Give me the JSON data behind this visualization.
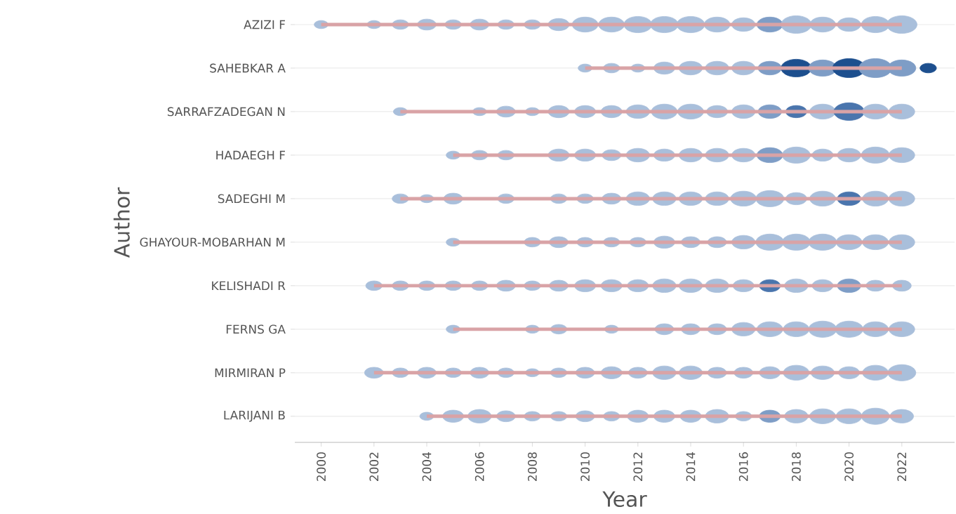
{
  "chart_data": {
    "type": "bubble",
    "orientation": "horizontal",
    "xlabel": "Year",
    "ylabel": "Author",
    "grid": "y",
    "xlim": [
      1999,
      2024
    ],
    "xticks": [
      2000,
      2002,
      2004,
      2006,
      2008,
      2010,
      2012,
      2014,
      2016,
      2018,
      2020,
      2022
    ],
    "categories": [
      "AZIZI F",
      "SAHEBKAR A",
      "SARRAFZADEGAN N",
      "HADAEGH F",
      "SADEGHI M",
      "GHAYOUR-MOBARHAN M",
      "KELISHADI R",
      "FERNS GA",
      "MIRMIRAN P",
      "LARIJANI B"
    ],
    "series": [
      {
        "type": "bar",
        "color": "#d9a3a6",
        "base": [
          2000,
          2010,
          2003,
          2005,
          2003,
          2005,
          2002,
          2005,
          2002,
          2004
        ],
        "values": [
          22,
          12,
          19,
          17,
          19,
          17,
          20,
          17,
          20,
          18
        ]
      },
      {
        "values": [
          2000,
          null,
          null,
          null,
          null,
          null,
          null,
          null,
          null,
          null
        ],
        "sizes": [
          0.18,
          null,
          null,
          null,
          null,
          null,
          null,
          null,
          null,
          null
        ],
        "colors": [
          "#a9bfdb",
          null,
          null,
          null,
          null,
          null,
          null,
          null,
          null,
          null
        ]
      },
      {
        "values": [
          2002,
          null,
          null,
          null,
          null,
          null,
          2002,
          null,
          2002,
          null
        ],
        "sizes": [
          0.18,
          null,
          null,
          null,
          null,
          null,
          0.25,
          null,
          0.33,
          null
        ],
        "colors": [
          "#a9bfdb",
          null,
          null,
          null,
          null,
          null,
          "#a9bfdb",
          null,
          "#a9bfdb",
          null
        ]
      },
      {
        "values": [
          2003,
          null,
          2003,
          null,
          2003,
          null,
          2003,
          null,
          2003,
          null
        ],
        "sizes": [
          0.25,
          null,
          0.18,
          null,
          0.25,
          null,
          0.25,
          null,
          0.25,
          null
        ],
        "colors": [
          "#a9bfdb",
          null,
          "#a9bfdb",
          null,
          "#a9bfdb",
          null,
          "#a9bfdb",
          null,
          "#a9bfdb",
          null
        ]
      },
      {
        "values": [
          2004,
          null,
          null,
          null,
          2004,
          null,
          2004,
          null,
          2004,
          2004
        ],
        "sizes": [
          0.33,
          null,
          null,
          null,
          0.18,
          null,
          0.25,
          null,
          0.33,
          0.18
        ],
        "colors": [
          "#a9bfdb",
          null,
          null,
          null,
          "#a9bfdb",
          null,
          "#a9bfdb",
          null,
          "#a9bfdb",
          "#a9bfdb"
        ]
      },
      {
        "values": [
          2005,
          null,
          null,
          2005,
          2005,
          2005,
          2005,
          2005,
          2005,
          2005
        ],
        "sizes": [
          0.25,
          null,
          null,
          0.18,
          0.33,
          0.18,
          0.25,
          0.18,
          0.25,
          0.41
        ],
        "colors": [
          "#a9bfdb",
          null,
          null,
          "#a9bfdb",
          "#a9bfdb",
          "#a9bfdb",
          "#a9bfdb",
          "#a9bfdb",
          "#a9bfdb",
          "#a9bfdb"
        ]
      },
      {
        "values": [
          2006,
          null,
          2006,
          2006,
          null,
          null,
          2006,
          null,
          2006,
          2006
        ],
        "sizes": [
          0.33,
          null,
          0.18,
          0.25,
          null,
          null,
          0.25,
          null,
          0.33,
          0.51
        ],
        "colors": [
          "#a9bfdb",
          null,
          "#a9bfdb",
          "#a9bfdb",
          null,
          null,
          "#a9bfdb",
          null,
          "#a9bfdb",
          "#a9bfdb"
        ]
      },
      {
        "values": [
          2007,
          null,
          2007,
          2007,
          2007,
          null,
          2007,
          null,
          2007,
          2007
        ],
        "sizes": [
          0.25,
          null,
          0.33,
          0.25,
          0.25,
          null,
          0.33,
          null,
          0.25,
          0.33
        ],
        "colors": [
          "#a9bfdb",
          null,
          "#a9bfdb",
          "#a9bfdb",
          "#a9bfdb",
          null,
          "#a9bfdb",
          null,
          "#a9bfdb",
          "#a9bfdb"
        ]
      },
      {
        "values": [
          2008,
          null,
          2008,
          null,
          null,
          2008,
          2008,
          2008,
          2008,
          2008
        ],
        "sizes": [
          0.25,
          null,
          0.18,
          null,
          null,
          0.25,
          0.25,
          0.18,
          0.18,
          0.25
        ],
        "colors": [
          "#a9bfdb",
          null,
          "#a9bfdb",
          null,
          null,
          "#a9bfdb",
          "#a9bfdb",
          "#a9bfdb",
          "#a9bfdb",
          "#a9bfdb"
        ]
      },
      {
        "values": [
          2009,
          null,
          2009,
          2009,
          2009,
          2009,
          2009,
          2009,
          2009,
          2009
        ],
        "sizes": [
          0.41,
          null,
          0.41,
          0.41,
          0.25,
          0.33,
          0.33,
          0.25,
          0.25,
          0.25
        ],
        "colors": [
          "#a9bfdb",
          null,
          "#a9bfdb",
          "#a9bfdb",
          "#a9bfdb",
          "#a9bfdb",
          "#a9bfdb",
          "#a9bfdb",
          "#a9bfdb",
          "#a9bfdb"
        ]
      },
      {
        "values": [
          2010,
          2010,
          2010,
          2010,
          2010,
          2010,
          2010,
          null,
          2010,
          2010
        ],
        "sizes": [
          0.62,
          0.18,
          0.41,
          0.41,
          0.25,
          0.25,
          0.41,
          null,
          0.33,
          0.33
        ],
        "colors": [
          "#a9bfdb",
          "#a9bfdb",
          "#a9bfdb",
          "#a9bfdb",
          "#a9bfdb",
          "#a9bfdb",
          "#a9bfdb",
          null,
          "#a9bfdb",
          "#a9bfdb"
        ]
      },
      {
        "values": [
          2011,
          2011,
          2011,
          2011,
          2011,
          2011,
          2011,
          2011,
          2011,
          2011
        ],
        "sizes": [
          0.62,
          0.25,
          0.41,
          0.33,
          0.33,
          0.25,
          0.41,
          0.18,
          0.41,
          0.25
        ],
        "colors": [
          "#a9bfdb",
          "#a9bfdb",
          "#a9bfdb",
          "#a9bfdb",
          "#a9bfdb",
          "#a9bfdb",
          "#a9bfdb",
          "#a9bfdb",
          "#a9bfdb",
          "#a9bfdb"
        ]
      },
      {
        "values": [
          2012,
          2012,
          2012,
          2012,
          2012,
          2012,
          2012,
          null,
          2012,
          2012
        ],
        "sizes": [
          0.73,
          0.18,
          0.51,
          0.51,
          0.51,
          0.25,
          0.41,
          null,
          0.33,
          0.41
        ],
        "colors": [
          "#a9bfdb",
          "#a9bfdb",
          "#a9bfdb",
          "#a9bfdb",
          "#a9bfdb",
          "#a9bfdb",
          "#a9bfdb",
          null,
          "#a9bfdb",
          "#a9bfdb"
        ]
      },
      {
        "values": [
          2013,
          2013,
          2013,
          2013,
          2013,
          2013,
          2013,
          2013,
          2013,
          2013
        ],
        "sizes": [
          0.73,
          0.41,
          0.62,
          0.41,
          0.51,
          0.41,
          0.51,
          0.33,
          0.51,
          0.41
        ],
        "colors": [
          "#a9bfdb",
          "#a9bfdb",
          "#a9bfdb",
          "#a9bfdb",
          "#a9bfdb",
          "#a9bfdb",
          "#a9bfdb",
          "#a9bfdb",
          "#a9bfdb",
          "#a9bfdb"
        ]
      },
      {
        "values": [
          2014,
          2014,
          2014,
          2014,
          2014,
          2014,
          2014,
          2014,
          2014,
          2014
        ],
        "sizes": [
          0.73,
          0.51,
          0.62,
          0.51,
          0.51,
          0.33,
          0.51,
          0.33,
          0.51,
          0.41
        ],
        "colors": [
          "#a9bfdb",
          "#a9bfdb",
          "#a9bfdb",
          "#a9bfdb",
          "#a9bfdb",
          "#a9bfdb",
          "#a9bfdb",
          "#a9bfdb",
          "#a9bfdb",
          "#a9bfdb"
        ]
      },
      {
        "values": [
          2015,
          2015,
          2015,
          2015,
          2015,
          2015,
          2015,
          2015,
          2015,
          2015
        ],
        "sizes": [
          0.62,
          0.51,
          0.41,
          0.51,
          0.51,
          0.33,
          0.51,
          0.33,
          0.33,
          0.51
        ],
        "colors": [
          "#a9bfdb",
          "#a9bfdb",
          "#a9bfdb",
          "#a9bfdb",
          "#a9bfdb",
          "#a9bfdb",
          "#a9bfdb",
          "#a9bfdb",
          "#a9bfdb",
          "#a9bfdb"
        ]
      },
      {
        "values": [
          2016,
          2016,
          2016,
          2016,
          2016,
          2016,
          2016,
          2016,
          2016,
          2016
        ],
        "sizes": [
          0.51,
          0.51,
          0.51,
          0.51,
          0.62,
          0.51,
          0.41,
          0.51,
          0.33,
          0.25
        ],
        "colors": [
          "#a9bfdb",
          "#a9bfdb",
          "#a9bfdb",
          "#a9bfdb",
          "#a9bfdb",
          "#a9bfdb",
          "#a9bfdb",
          "#a9bfdb",
          "#a9bfdb",
          "#a9bfdb"
        ]
      },
      {
        "values": [
          2017,
          2017,
          2017,
          2017,
          2017,
          2017,
          2017,
          2017,
          2017,
          2017
        ],
        "sizes": [
          0.62,
          0.51,
          0.51,
          0.62,
          0.73,
          0.73,
          0.41,
          0.62,
          0.41,
          0.41
        ],
        "colors": [
          "#7e9dc6",
          "#7e9dc6",
          "#7e9dc6",
          "#7e9dc6",
          "#a9bfdb",
          "#a9bfdb",
          "#4a75ad",
          "#a9bfdb",
          "#a9bfdb",
          "#7e9dc6"
        ]
      },
      {
        "values": [
          2018,
          2018,
          2018,
          2018,
          2018,
          2018,
          2018,
          2018,
          2018,
          2018
        ],
        "sizes": [
          0.86,
          0.86,
          0.41,
          0.73,
          0.41,
          0.73,
          0.51,
          0.62,
          0.62,
          0.51
        ],
        "colors": [
          "#a9bfdb",
          "#1d4f8e",
          "#4a75ad",
          "#a9bfdb",
          "#a9bfdb",
          "#a9bfdb",
          "#a9bfdb",
          "#a9bfdb",
          "#a9bfdb",
          "#a9bfdb"
        ]
      },
      {
        "values": [
          2019,
          2019,
          2019,
          2019,
          2019,
          2019,
          2019,
          2019,
          2019,
          2019
        ],
        "sizes": [
          0.62,
          0.73,
          0.62,
          0.41,
          0.62,
          0.73,
          0.41,
          0.73,
          0.51,
          0.62
        ],
        "colors": [
          "#a9bfdb",
          "#7e9dc6",
          "#a9bfdb",
          "#a9bfdb",
          "#a9bfdb",
          "#a9bfdb",
          "#a9bfdb",
          "#a9bfdb",
          "#a9bfdb",
          "#a9bfdb"
        ]
      },
      {
        "values": [
          2020,
          2020,
          2020,
          2020,
          2020,
          2020,
          2020,
          2020,
          2020,
          2020
        ],
        "sizes": [
          0.51,
          1,
          0.86,
          0.51,
          0.51,
          0.62,
          0.51,
          0.73,
          0.41,
          0.62
        ],
        "colors": [
          "#a9bfdb",
          "#1d4f8e",
          "#4a75ad",
          "#a9bfdb",
          "#4a75ad",
          "#a9bfdb",
          "#7e9dc6",
          "#a9bfdb",
          "#a9bfdb",
          "#a9bfdb"
        ]
      },
      {
        "values": [
          2021,
          2021,
          2021,
          2021,
          2021,
          2021,
          2021,
          2021,
          2021,
          2021
        ],
        "sizes": [
          0.73,
          1,
          0.62,
          0.73,
          0.62,
          0.62,
          0.33,
          0.62,
          0.62,
          0.73
        ],
        "colors": [
          "#a9bfdb",
          "#7e9dc6",
          "#a9bfdb",
          "#a9bfdb",
          "#a9bfdb",
          "#a9bfdb",
          "#a9bfdb",
          "#a9bfdb",
          "#a9bfdb",
          "#a9bfdb"
        ]
      },
      {
        "values": [
          2022,
          2022,
          2022,
          2022,
          2022,
          2022,
          2022,
          2022,
          2022,
          2022
        ],
        "sizes": [
          0.86,
          0.73,
          0.62,
          0.62,
          0.62,
          0.62,
          0.33,
          0.62,
          0.73,
          0.51
        ],
        "colors": [
          "#a9bfdb",
          "#7e9dc6",
          "#a9bfdb",
          "#a9bfdb",
          "#a9bfdb",
          "#a9bfdb",
          "#a9bfdb",
          "#a9bfdb",
          "#a9bfdb",
          "#a9bfdb"
        ]
      },
      {
        "values": [
          null,
          2023,
          null,
          null,
          null,
          null,
          null,
          null,
          null,
          null
        ],
        "sizes": [
          null,
          0.25,
          null,
          null,
          null,
          null,
          null,
          null,
          null,
          null
        ],
        "colors": [
          null,
          "#1d4f8e",
          null,
          null,
          null,
          null,
          null,
          null,
          null,
          null
        ]
      }
    ]
  }
}
